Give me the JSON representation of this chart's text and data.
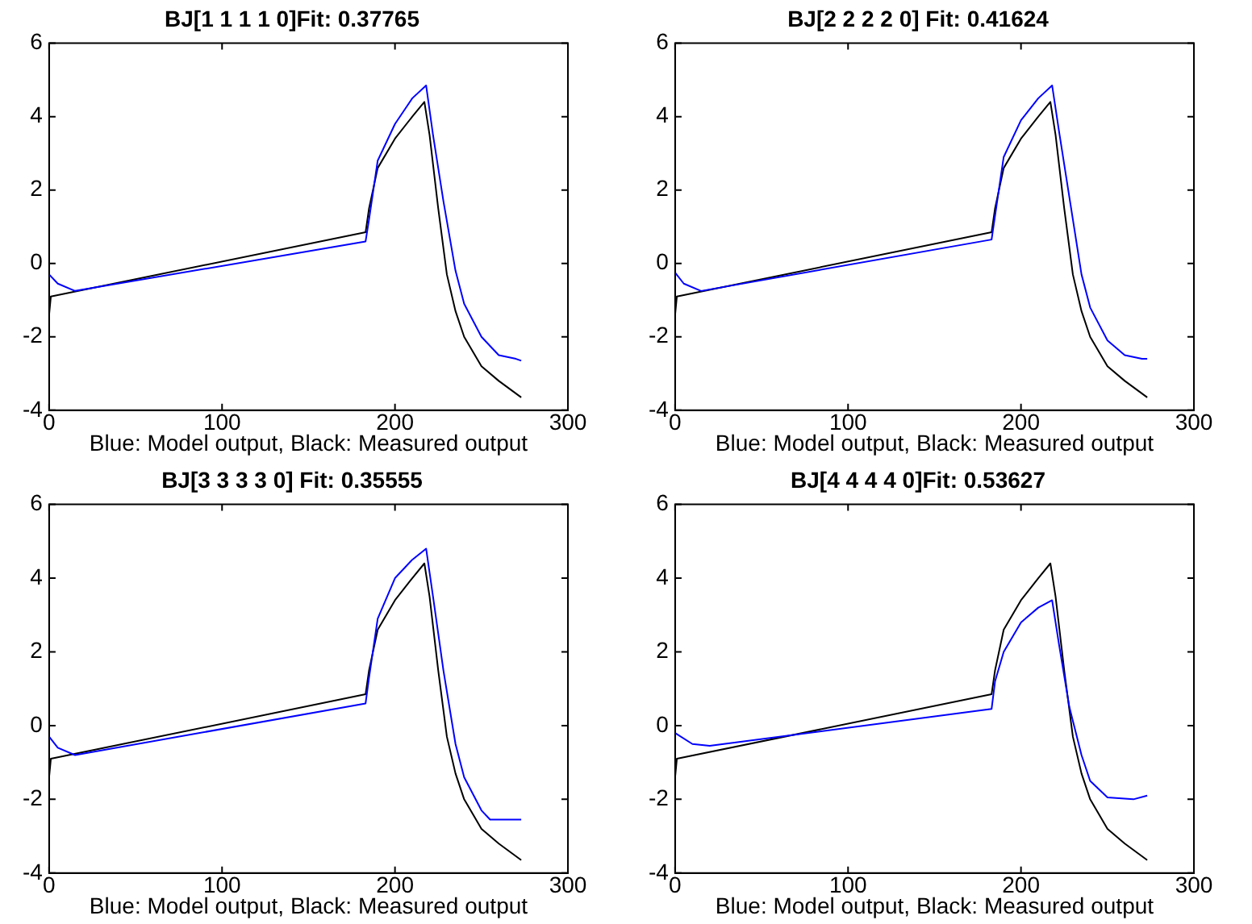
{
  "chart_data": [
    {
      "type": "line",
      "title": "BJ[1 1 1 1 0]Fit: 0.37765",
      "xlabel": "Blue: Model output, Black: Measured output",
      "xlim": [
        0,
        300
      ],
      "xticks": [
        0,
        100,
        200,
        300
      ],
      "ylim": [
        -4,
        6
      ],
      "yticks": [
        -4,
        -2,
        0,
        2,
        4,
        6
      ],
      "grid": false,
      "legend": false,
      "marker": "none",
      "line_style": "solid",
      "series": [
        {
          "color": "#0000ff",
          "x": [
            0,
            5,
            15,
            183,
            185,
            190,
            200,
            210,
            218,
            222,
            228,
            235,
            240,
            250,
            260,
            270,
            273
          ],
          "values": [
            -0.3,
            -0.55,
            -0.75,
            0.6,
            1.2,
            2.8,
            3.8,
            4.5,
            4.85,
            3.5,
            1.7,
            -0.2,
            -1.1,
            -2.0,
            -2.5,
            -2.6,
            -2.65
          ]
        },
        {
          "color": "#000000",
          "x": [
            0,
            1,
            183,
            185,
            190,
            200,
            210,
            217,
            220,
            225,
            230,
            235,
            240,
            250,
            260,
            273
          ],
          "values": [
            -1.4,
            -0.9,
            0.85,
            1.5,
            2.6,
            3.4,
            4.0,
            4.4,
            3.5,
            1.5,
            -0.3,
            -1.3,
            -2.0,
            -2.8,
            -3.2,
            -3.65
          ]
        }
      ]
    },
    {
      "type": "line",
      "title": "BJ[2 2 2 2 0] Fit: 0.41624",
      "xlabel": "Blue: Model output, Black: Measured output",
      "xlim": [
        0,
        300
      ],
      "xticks": [
        0,
        100,
        200,
        300
      ],
      "ylim": [
        -4,
        6
      ],
      "yticks": [
        -4,
        -2,
        0,
        2,
        4,
        6
      ],
      "grid": false,
      "legend": false,
      "marker": "none",
      "line_style": "solid",
      "series": [
        {
          "color": "#0000ff",
          "x": [
            0,
            5,
            15,
            183,
            185,
            190,
            200,
            210,
            218,
            222,
            228,
            235,
            240,
            250,
            260,
            270,
            273
          ],
          "values": [
            -0.25,
            -0.55,
            -0.75,
            0.65,
            1.3,
            2.9,
            3.9,
            4.5,
            4.85,
            3.6,
            1.8,
            -0.3,
            -1.2,
            -2.1,
            -2.5,
            -2.6,
            -2.6
          ]
        },
        {
          "color": "#000000",
          "x": [
            0,
            1,
            183,
            185,
            190,
            200,
            210,
            217,
            220,
            225,
            230,
            235,
            240,
            250,
            260,
            273
          ],
          "values": [
            -1.4,
            -0.9,
            0.85,
            1.5,
            2.6,
            3.4,
            4.0,
            4.4,
            3.5,
            1.5,
            -0.3,
            -1.3,
            -2.0,
            -2.8,
            -3.2,
            -3.65
          ]
        }
      ]
    },
    {
      "type": "line",
      "title": "BJ[3 3 3 3 0] Fit: 0.35555",
      "xlabel": "Blue: Model output, Black: Measured output",
      "xlim": [
        0,
        300
      ],
      "xticks": [
        0,
        100,
        200,
        300
      ],
      "ylim": [
        -4,
        6
      ],
      "yticks": [
        -4,
        -2,
        0,
        2,
        4,
        6
      ],
      "grid": false,
      "legend": false,
      "marker": "none",
      "line_style": "solid",
      "series": [
        {
          "color": "#0000ff",
          "x": [
            0,
            5,
            15,
            183,
            185,
            190,
            200,
            210,
            218,
            222,
            228,
            235,
            240,
            250,
            255,
            273
          ],
          "values": [
            -0.3,
            -0.6,
            -0.8,
            0.6,
            1.3,
            2.9,
            4.0,
            4.5,
            4.8,
            3.5,
            1.5,
            -0.5,
            -1.4,
            -2.3,
            -2.55,
            -2.55
          ]
        },
        {
          "color": "#000000",
          "x": [
            0,
            1,
            183,
            185,
            190,
            200,
            210,
            217,
            220,
            225,
            230,
            235,
            240,
            250,
            260,
            273
          ],
          "values": [
            -1.4,
            -0.9,
            0.85,
            1.5,
            2.6,
            3.4,
            4.0,
            4.4,
            3.5,
            1.5,
            -0.3,
            -1.3,
            -2.0,
            -2.8,
            -3.2,
            -3.65
          ]
        }
      ]
    },
    {
      "type": "line",
      "title": "BJ[4 4 4 4 0]Fit: 0.53627",
      "xlabel": "Blue: Model output, Black: Measured output",
      "xlim": [
        0,
        300
      ],
      "xticks": [
        0,
        100,
        200,
        300
      ],
      "ylim": [
        -4,
        6
      ],
      "yticks": [
        -4,
        -2,
        0,
        2,
        4,
        6
      ],
      "grid": false,
      "legend": false,
      "marker": "none",
      "line_style": "solid",
      "series": [
        {
          "color": "#0000ff",
          "x": [
            0,
            10,
            20,
            183,
            185,
            190,
            200,
            210,
            218,
            222,
            228,
            235,
            240,
            250,
            265,
            273
          ],
          "values": [
            -0.2,
            -0.5,
            -0.55,
            0.45,
            1.2,
            2.0,
            2.8,
            3.2,
            3.4,
            2.2,
            0.5,
            -0.8,
            -1.5,
            -1.95,
            -2.0,
            -1.9
          ]
        },
        {
          "color": "#000000",
          "x": [
            0,
            1,
            183,
            185,
            190,
            200,
            210,
            217,
            220,
            225,
            230,
            235,
            240,
            250,
            260,
            273
          ],
          "values": [
            -1.4,
            -0.9,
            0.85,
            1.5,
            2.6,
            3.4,
            4.0,
            4.4,
            3.5,
            1.5,
            -0.3,
            -1.3,
            -2.0,
            -2.8,
            -3.2,
            -3.65
          ]
        }
      ]
    }
  ]
}
